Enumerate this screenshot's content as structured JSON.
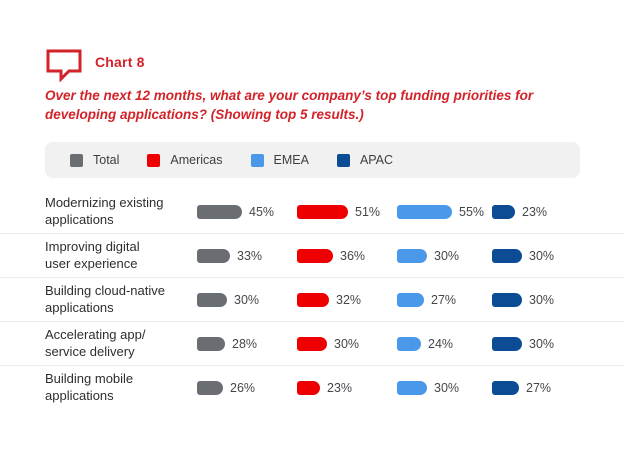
{
  "header": {
    "title": "Chart 8",
    "subtitle": "Over the next 12 months, what are your company’s top funding priorities for developing applications? (Showing top 5 results.)",
    "accent_color": "#d2232a"
  },
  "legend": {
    "items": [
      {
        "label": "Total",
        "color": "#6a6e73"
      },
      {
        "label": "Americas",
        "color": "#ee0000"
      },
      {
        "label": "EMEA",
        "color": "#4a98e8"
      },
      {
        "label": "APAC",
        "color": "#0b4c95"
      }
    ]
  },
  "chart_data": {
    "type": "bar",
    "orientation": "horizontal",
    "unit": "%",
    "title": "Chart 8",
    "question": "Over the next 12 months, what are your company’s top funding priorities for developing applications? (Showing top 5 results.)",
    "categories": [
      "Modernizing existing\napplications",
      "Improving digital\nuser experience",
      "Building cloud-native\napplications",
      "Accelerating app/\nservice delivery",
      "Building mobile\napplications"
    ],
    "series": [
      {
        "name": "Total",
        "color": "#6a6e73",
        "values": [
          45,
          33,
          30,
          28,
          26
        ]
      },
      {
        "name": "Americas",
        "color": "#ee0000",
        "values": [
          51,
          36,
          32,
          30,
          23
        ]
      },
      {
        "name": "EMEA",
        "color": "#4a98e8",
        "values": [
          55,
          30,
          27,
          24,
          30
        ]
      },
      {
        "name": "APAC",
        "color": "#0b4c95",
        "values": [
          23,
          30,
          30,
          30,
          27
        ]
      }
    ],
    "value_range": [
      0,
      60
    ],
    "data_labels": true,
    "grid": false,
    "legend_position": "top"
  }
}
